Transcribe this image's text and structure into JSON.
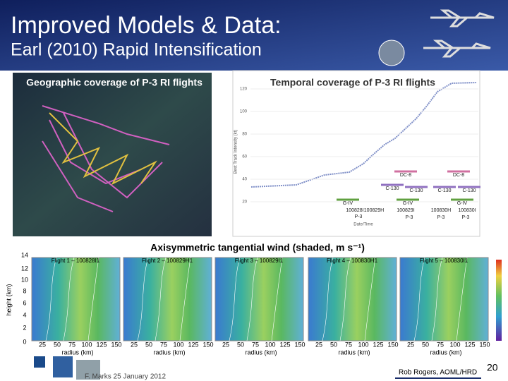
{
  "header": {
    "title": "Improved Models & Data:",
    "subtitle": "Earl (2010) Rapid Intensification"
  },
  "map": {
    "caption": "Geographic coverage of P-3 RI flights"
  },
  "temporal": {
    "title": "Temporal coverage of P-3 RI flights",
    "y_label": "Best Track Intensity (kt)",
    "x_label": "Date/Time",
    "yticks": [
      "120",
      "100",
      "80",
      "60",
      "40",
      "20"
    ],
    "annotations": [
      "DC-8",
      "DC-8",
      "C-130",
      "C-130",
      "C-130",
      "C-130",
      "G-IV",
      "G-IV",
      "G-IV",
      "100828I",
      "100829H",
      "100829I",
      "100830H",
      "100830I",
      "P-3",
      "P-3",
      "P-3",
      "P-3"
    ]
  },
  "wind": {
    "title": "Axisymmetric tangential wind (shaded, m s⁻¹)",
    "y_label": "height (km)",
    "yticks": [
      "14",
      "12",
      "10",
      "8",
      "6",
      "4",
      "2",
      "0"
    ],
    "xticks": [
      "25",
      "50",
      "75",
      "100",
      "125",
      "150"
    ],
    "x_label": "radius (km)",
    "panels": [
      "Flight 1 – 100828I1",
      "Flight 2 – 100829H1",
      "Flight 3 – 100829I1",
      "Flight 4 – 100830H1",
      "Flight 5 – 100830I1"
    ]
  },
  "footer": {
    "left": "F. Marks 25 January 2012",
    "right": "Rob Rogers, AOML/HRD",
    "page": "20"
  }
}
